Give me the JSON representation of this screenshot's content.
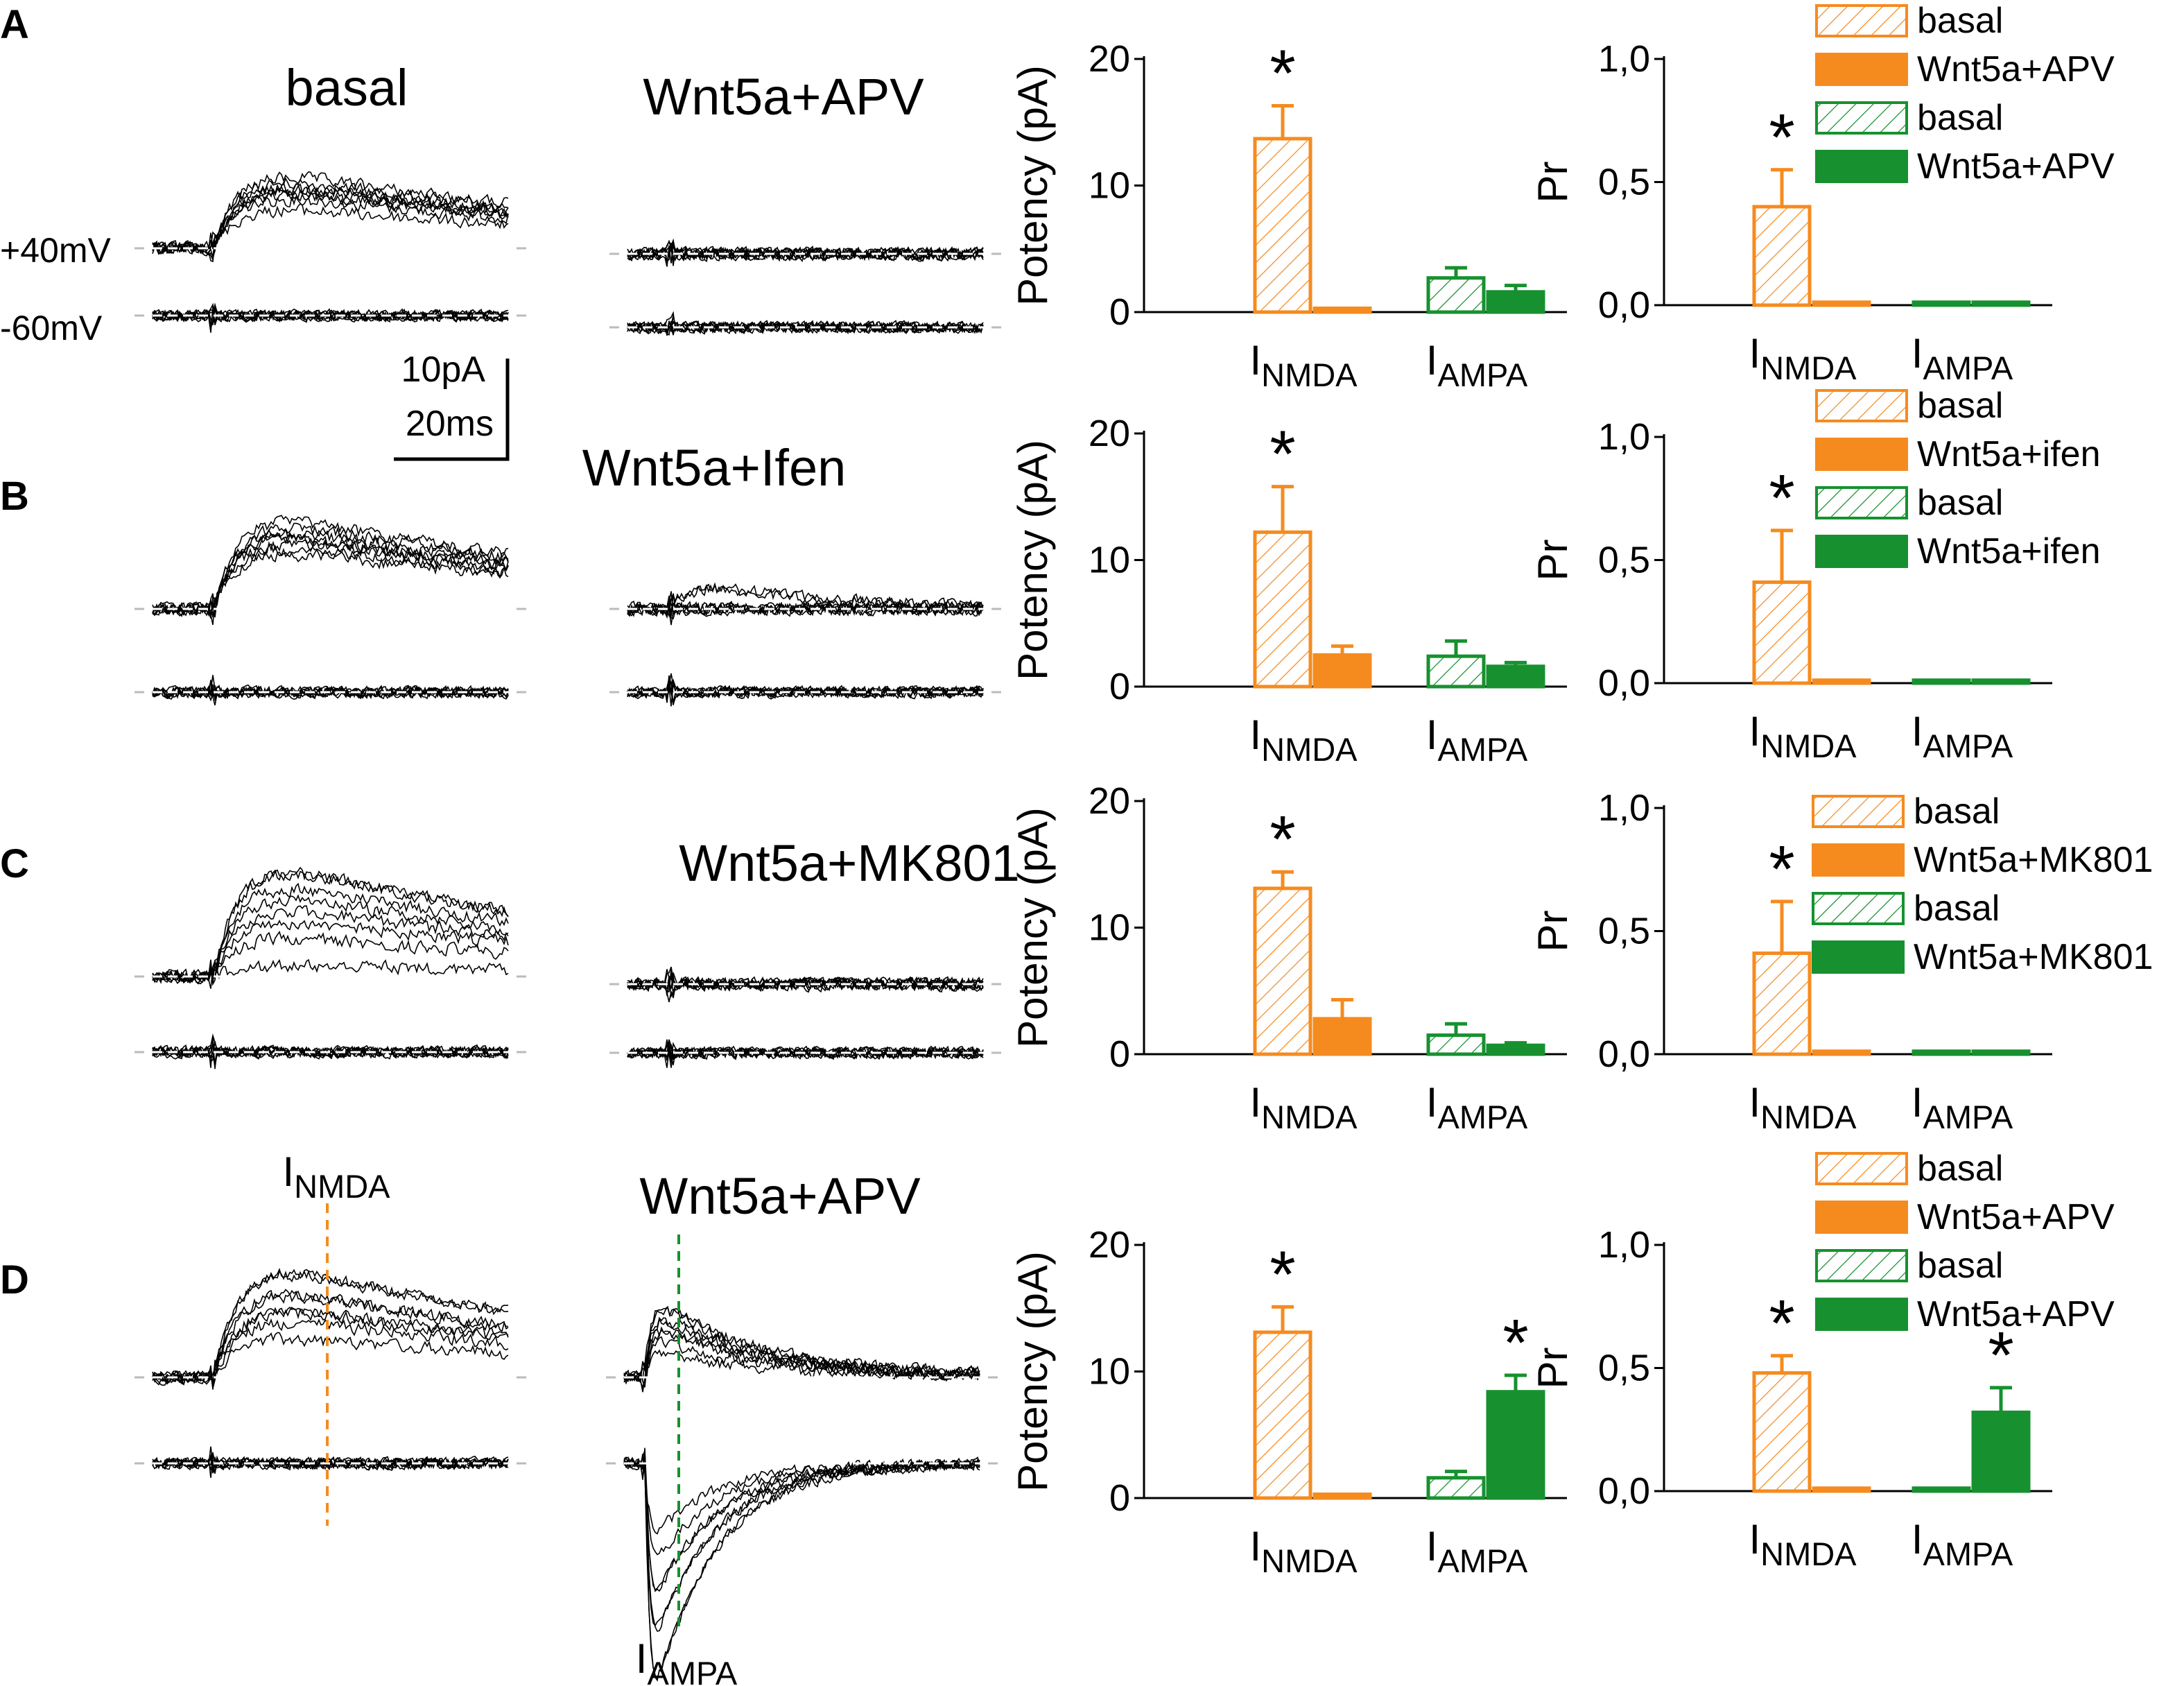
{
  "figure": {
    "colors": {
      "orange": "#f58b1f",
      "green": "#17912f",
      "trace": "#000000",
      "dashes": "#bbbbbb"
    },
    "panels": [
      {
        "label": "A",
        "trace_titles": [
          "basal",
          "Wnt5a+APV"
        ],
        "voltage_labels": [
          "+40mV",
          "-60mV"
        ],
        "scalebar": [
          "10pA",
          "20ms"
        ]
      },
      {
        "label": "B",
        "trace_titles": [
          "",
          "Wnt5a+Ifen"
        ]
      },
      {
        "label": "C",
        "trace_titles": [
          "",
          "Wnt5a+MK801"
        ]
      },
      {
        "label": "D",
        "trace_titles": [
          "",
          "Wnt5a+APV"
        ],
        "markers": [
          {
            "main": "I",
            "sub": "NMDA"
          },
          {
            "main": "I",
            "sub": "AMPA"
          }
        ]
      }
    ]
  },
  "chart_data": [
    {
      "type": "bar",
      "panel": "A",
      "measure": "Potency",
      "ylabel": "Potency (pA)",
      "ylim": [
        0,
        20
      ],
      "yticks": [
        "0",
        "10",
        "20"
      ],
      "groups": [
        {
          "main": "I",
          "sub": "NMDA"
        },
        {
          "main": "I",
          "sub": "AMPA"
        }
      ],
      "series": [
        {
          "name": "basal",
          "group": "NMDA",
          "color": "orange",
          "pattern": "hatched",
          "value": 13.7,
          "error": 2.6,
          "sig": true
        },
        {
          "name": "Wnt5a+APV",
          "group": "NMDA",
          "color": "orange",
          "pattern": "solid",
          "value": 0.3,
          "error": 0,
          "sig": false
        },
        {
          "name": "basal",
          "group": "AMPA",
          "color": "green",
          "pattern": "hatched",
          "value": 2.7,
          "error": 0.8,
          "sig": false
        },
        {
          "name": "Wnt5a+APV",
          "group": "AMPA",
          "color": "green",
          "pattern": "solid",
          "value": 1.6,
          "error": 0.5,
          "sig": false
        }
      ]
    },
    {
      "type": "bar",
      "panel": "A",
      "measure": "Pr",
      "ylabel": "Pr",
      "ylim": [
        0,
        1
      ],
      "yticks": [
        "0,0",
        "0,5",
        "1,0"
      ],
      "groups": [
        {
          "main": "I",
          "sub": "NMDA"
        },
        {
          "main": "I",
          "sub": "AMPA"
        }
      ],
      "legend": [
        "basal",
        "Wnt5a+APV",
        "basal",
        "Wnt5a+APV"
      ],
      "series": [
        {
          "name": "basal",
          "group": "NMDA",
          "color": "orange",
          "pattern": "hatched",
          "value": 0.4,
          "error": 0.15,
          "sig": true
        },
        {
          "name": "Wnt5a+APV",
          "group": "NMDA",
          "color": "orange",
          "pattern": "solid",
          "value": 0.01,
          "error": 0,
          "sig": false
        },
        {
          "name": "basal",
          "group": "AMPA",
          "color": "green",
          "pattern": "hatched",
          "value": 0.01,
          "error": 0,
          "sig": false
        },
        {
          "name": "Wnt5a+APV",
          "group": "AMPA",
          "color": "green",
          "pattern": "solid",
          "value": 0.01,
          "error": 0,
          "sig": false
        }
      ]
    },
    {
      "type": "bar",
      "panel": "B",
      "measure": "Potency",
      "ylabel": "Potency (pA)",
      "ylim": [
        0,
        20
      ],
      "yticks": [
        "0",
        "10",
        "20"
      ],
      "groups": [
        {
          "main": "I",
          "sub": "NMDA"
        },
        {
          "main": "I",
          "sub": "AMPA"
        }
      ],
      "series": [
        {
          "name": "basal",
          "group": "NMDA",
          "color": "orange",
          "pattern": "hatched",
          "value": 12.2,
          "error": 3.6,
          "sig": true
        },
        {
          "name": "Wnt5a+ifen",
          "group": "NMDA",
          "color": "orange",
          "pattern": "solid",
          "value": 2.5,
          "error": 0.7,
          "sig": false
        },
        {
          "name": "basal",
          "group": "AMPA",
          "color": "green",
          "pattern": "hatched",
          "value": 2.4,
          "error": 1.2,
          "sig": false
        },
        {
          "name": "Wnt5a+ifen",
          "group": "AMPA",
          "color": "green",
          "pattern": "solid",
          "value": 1.6,
          "error": 0.3,
          "sig": false
        }
      ]
    },
    {
      "type": "bar",
      "panel": "B",
      "measure": "Pr",
      "ylabel": "Pr",
      "ylim": [
        0,
        1
      ],
      "yticks": [
        "0,0",
        "0,5",
        "1,0"
      ],
      "groups": [
        {
          "main": "I",
          "sub": "NMDA"
        },
        {
          "main": "I",
          "sub": "AMPA"
        }
      ],
      "legend": [
        "basal",
        "Wnt5a+ifen",
        "basal",
        "Wnt5a+ifen"
      ],
      "series": [
        {
          "name": "basal",
          "group": "NMDA",
          "color": "orange",
          "pattern": "hatched",
          "value": 0.41,
          "error": 0.21,
          "sig": true
        },
        {
          "name": "Wnt5a+ifen",
          "group": "NMDA",
          "color": "orange",
          "pattern": "solid",
          "value": 0.01,
          "error": 0,
          "sig": false
        },
        {
          "name": "basal",
          "group": "AMPA",
          "color": "green",
          "pattern": "hatched",
          "value": 0.01,
          "error": 0,
          "sig": false
        },
        {
          "name": "Wnt5a+ifen",
          "group": "AMPA",
          "color": "green",
          "pattern": "solid",
          "value": 0.01,
          "error": 0,
          "sig": false
        }
      ]
    },
    {
      "type": "bar",
      "panel": "C",
      "measure": "Potency",
      "ylabel": "Potency (pA)",
      "ylim": [
        0,
        20
      ],
      "yticks": [
        "0",
        "10",
        "20"
      ],
      "groups": [
        {
          "main": "I",
          "sub": "NMDA"
        },
        {
          "main": "I",
          "sub": "AMPA"
        }
      ],
      "series": [
        {
          "name": "basal",
          "group": "NMDA",
          "color": "orange",
          "pattern": "hatched",
          "value": 13.1,
          "error": 1.3,
          "sig": true
        },
        {
          "name": "Wnt5a+MK801",
          "group": "NMDA",
          "color": "orange",
          "pattern": "solid",
          "value": 2.8,
          "error": 1.5,
          "sig": false
        },
        {
          "name": "basal",
          "group": "AMPA",
          "color": "green",
          "pattern": "hatched",
          "value": 1.5,
          "error": 0.9,
          "sig": false
        },
        {
          "name": "Wnt5a+MK801",
          "group": "AMPA",
          "color": "green",
          "pattern": "solid",
          "value": 0.7,
          "error": 0.2,
          "sig": false
        }
      ]
    },
    {
      "type": "bar",
      "panel": "C",
      "measure": "Pr",
      "ylabel": "Pr",
      "ylim": [
        0,
        1
      ],
      "yticks": [
        "0,0",
        "0,5",
        "1,0"
      ],
      "groups": [
        {
          "main": "I",
          "sub": "NMDA"
        },
        {
          "main": "I",
          "sub": "AMPA"
        }
      ],
      "legend": [
        "basal",
        "Wnt5a+MK801",
        "basal",
        "Wnt5a+MK801"
      ],
      "series": [
        {
          "name": "basal",
          "group": "NMDA",
          "color": "orange",
          "pattern": "hatched",
          "value": 0.41,
          "error": 0.21,
          "sig": true
        },
        {
          "name": "Wnt5a+MK801",
          "group": "NMDA",
          "color": "orange",
          "pattern": "solid",
          "value": 0.01,
          "error": 0,
          "sig": false
        },
        {
          "name": "basal",
          "group": "AMPA",
          "color": "green",
          "pattern": "hatched",
          "value": 0.01,
          "error": 0,
          "sig": false
        },
        {
          "name": "Wnt5a+MK801",
          "group": "AMPA",
          "color": "green",
          "pattern": "solid",
          "value": 0.01,
          "error": 0,
          "sig": false
        }
      ]
    },
    {
      "type": "bar",
      "panel": "D",
      "measure": "Potency",
      "ylabel": "Potency (pA)",
      "ylim": [
        0,
        20
      ],
      "yticks": [
        "0",
        "10",
        "20"
      ],
      "groups": [
        {
          "main": "I",
          "sub": "NMDA"
        },
        {
          "main": "I",
          "sub": "AMPA"
        }
      ],
      "series": [
        {
          "name": "basal",
          "group": "NMDA",
          "color": "orange",
          "pattern": "hatched",
          "value": 13.1,
          "error": 2.0,
          "sig": true
        },
        {
          "name": "Wnt5a+APV",
          "group": "NMDA",
          "color": "orange",
          "pattern": "solid",
          "value": 0.3,
          "error": 0,
          "sig": false
        },
        {
          "name": "basal",
          "group": "AMPA",
          "color": "green",
          "pattern": "hatched",
          "value": 1.6,
          "error": 0.5,
          "sig": false
        },
        {
          "name": "Wnt5a+APV",
          "group": "AMPA",
          "color": "green",
          "pattern": "solid",
          "value": 8.4,
          "error": 1.3,
          "sig": true
        }
      ]
    },
    {
      "type": "bar",
      "panel": "D",
      "measure": "Pr",
      "ylabel": "Pr",
      "ylim": [
        0,
        1
      ],
      "yticks": [
        "0,0",
        "0,5",
        "1,0"
      ],
      "groups": [
        {
          "main": "I",
          "sub": "NMDA"
        },
        {
          "main": "I",
          "sub": "AMPA"
        }
      ],
      "legend": [
        "basal",
        "Wnt5a+APV",
        "basal",
        "Wnt5a+APV"
      ],
      "series": [
        {
          "name": "basal",
          "group": "NMDA",
          "color": "orange",
          "pattern": "hatched",
          "value": 0.48,
          "error": 0.07,
          "sig": true
        },
        {
          "name": "Wnt5a+APV",
          "group": "NMDA",
          "color": "orange",
          "pattern": "solid",
          "value": 0.01,
          "error": 0,
          "sig": false
        },
        {
          "name": "basal",
          "group": "AMPA",
          "color": "green",
          "pattern": "hatched",
          "value": 0.01,
          "error": 0,
          "sig": false
        },
        {
          "name": "Wnt5a+APV",
          "group": "AMPA",
          "color": "green",
          "pattern": "solid",
          "value": 0.32,
          "error": 0.1,
          "sig": true
        }
      ]
    }
  ]
}
